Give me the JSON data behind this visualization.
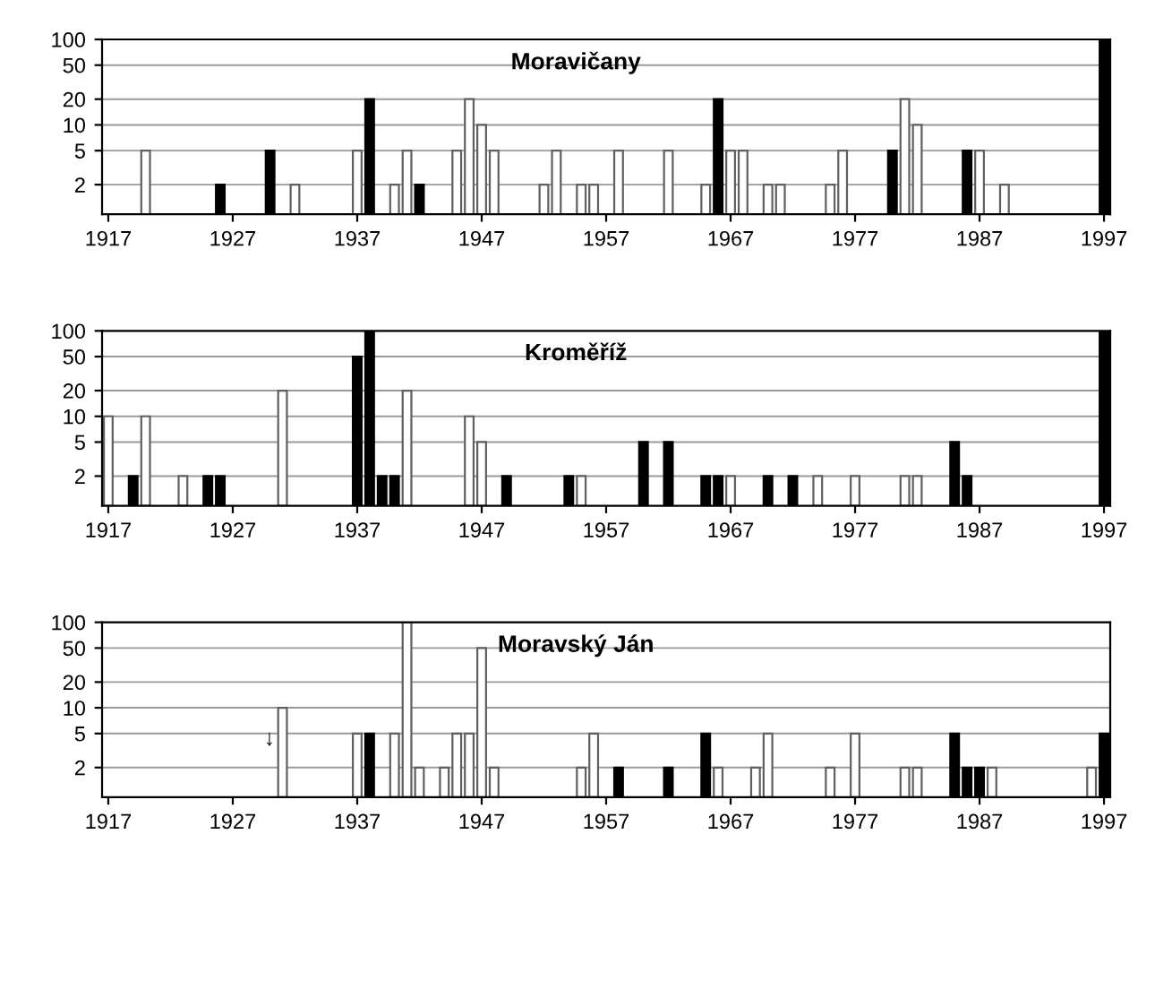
{
  "chart_data": [
    {
      "type": "bar",
      "title": "Moravičany",
      "log": true,
      "xlim": [
        1916.5,
        1997.5
      ],
      "xticks": [
        1917,
        1927,
        1937,
        1947,
        1957,
        1967,
        1977,
        1987,
        1997
      ],
      "ylim": [
        0.9,
        100
      ],
      "yticks": [
        2,
        5,
        10,
        20,
        50,
        100
      ],
      "grid": "y",
      "series": [
        {
          "color": "#ffffff",
          "x": [
            1920,
            1932,
            1937,
            1940,
            1941,
            1945,
            1946,
            1947,
            1948,
            1952,
            1953,
            1955,
            1956,
            1958,
            1962,
            1965,
            1967,
            1968,
            1970,
            1971,
            1975,
            1976,
            1981,
            1982,
            1987,
            1989
          ],
          "values": [
            5,
            2,
            5,
            2,
            5,
            5,
            20,
            10,
            5,
            2,
            5,
            2,
            2,
            5,
            5,
            2,
            5,
            5,
            2,
            2,
            2,
            5,
            20,
            10,
            5,
            2
          ]
        },
        {
          "color": "#000000",
          "x": [
            1926,
            1930,
            1938,
            1942,
            1966,
            1980,
            1986,
            1997
          ],
          "values": [
            2,
            5,
            20,
            2,
            20,
            5,
            5,
            100
          ]
        }
      ]
    },
    {
      "type": "bar",
      "title": "Kroměříž",
      "log": true,
      "xlim": [
        1916.5,
        1997.5
      ],
      "xticks": [
        1917,
        1927,
        1937,
        1947,
        1957,
        1967,
        1977,
        1987,
        1997
      ],
      "ylim": [
        0.9,
        100
      ],
      "yticks": [
        2,
        5,
        10,
        20,
        50,
        100
      ],
      "grid": "y",
      "series": [
        {
          "color": "#ffffff",
          "x": [
            1917,
            1920,
            1923,
            1931,
            1941,
            1946,
            1947,
            1955,
            1967,
            1974,
            1977,
            1981,
            1982
          ],
          "values": [
            10,
            10,
            2,
            20,
            20,
            10,
            5,
            2,
            2,
            2,
            2,
            2,
            2
          ]
        },
        {
          "color": "#000000",
          "x": [
            1919,
            1925,
            1926,
            1937,
            1938,
            1939,
            1940,
            1949,
            1954,
            1960,
            1962,
            1965,
            1966,
            1970,
            1972,
            1985,
            1986,
            1997
          ],
          "values": [
            2,
            2,
            2,
            50,
            100,
            2,
            2,
            2,
            2,
            5,
            5,
            2,
            2,
            2,
            2,
            5,
            2,
            100
          ]
        }
      ]
    },
    {
      "type": "bar",
      "title": "Moravský Ján",
      "log": true,
      "xlim": [
        1916.5,
        1997.5
      ],
      "xticks": [
        1917,
        1927,
        1937,
        1947,
        1957,
        1967,
        1977,
        1987,
        1997
      ],
      "ylim": [
        0.9,
        100
      ],
      "yticks": [
        2,
        5,
        10,
        20,
        50,
        100
      ],
      "grid": "y",
      "annotations": [
        "↓"
      ],
      "series": [
        {
          "color": "#ffffff",
          "x": [
            1931,
            1937,
            1940,
            1941,
            1942,
            1944,
            1945,
            1946,
            1947,
            1948,
            1955,
            1956,
            1966,
            1969,
            1970,
            1975,
            1977,
            1981,
            1982,
            1988,
            1996
          ],
          "values": [
            10,
            5,
            5,
            100,
            2,
            2,
            5,
            5,
            50,
            2,
            2,
            5,
            2,
            2,
            5,
            2,
            5,
            2,
            2,
            2,
            2
          ]
        },
        {
          "color": "#000000",
          "x": [
            1938,
            1958,
            1962,
            1965,
            1985,
            1986,
            1987,
            1997
          ],
          "values": [
            5,
            2,
            2,
            5,
            5,
            2,
            2,
            5
          ]
        }
      ]
    }
  ]
}
